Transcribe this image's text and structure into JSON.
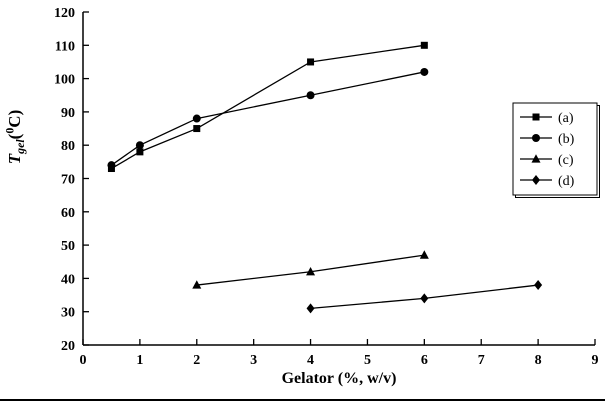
{
  "chart_data": {
    "type": "line",
    "title": "",
    "xlabel": "Gelator (%, w/v)",
    "ylabel": "T_gel (0C)",
    "ylabel_parts": {
      "var": "T",
      "sub": "gel",
      "open": "(",
      "deg": "0",
      "close": "C)"
    },
    "xlim": [
      0,
      9
    ],
    "ylim": [
      20,
      120
    ],
    "xticks": [
      0,
      1,
      2,
      3,
      4,
      5,
      6,
      7,
      8,
      9
    ],
    "yticks": [
      20,
      30,
      40,
      50,
      60,
      70,
      80,
      90,
      100,
      110,
      120
    ],
    "grid": false,
    "legend_position": "right",
    "line_color": "#000000",
    "marker_color": "#000000",
    "series": [
      {
        "name": "(a)",
        "marker": "square",
        "points": [
          [
            0.5,
            73
          ],
          [
            1,
            78
          ],
          [
            2,
            85
          ],
          [
            4,
            105
          ],
          [
            6,
            110
          ]
        ]
      },
      {
        "name": "(b)",
        "marker": "circle",
        "points": [
          [
            0.5,
            74
          ],
          [
            1,
            80
          ],
          [
            2,
            88
          ],
          [
            4,
            95
          ],
          [
            6,
            102
          ]
        ]
      },
      {
        "name": "(c)",
        "marker": "triangle",
        "points": [
          [
            2,
            38
          ],
          [
            4,
            42
          ],
          [
            6,
            47
          ]
        ]
      },
      {
        "name": "(d)",
        "marker": "diamond",
        "points": [
          [
            4,
            31
          ],
          [
            6,
            34
          ],
          [
            8,
            38
          ]
        ]
      }
    ]
  }
}
